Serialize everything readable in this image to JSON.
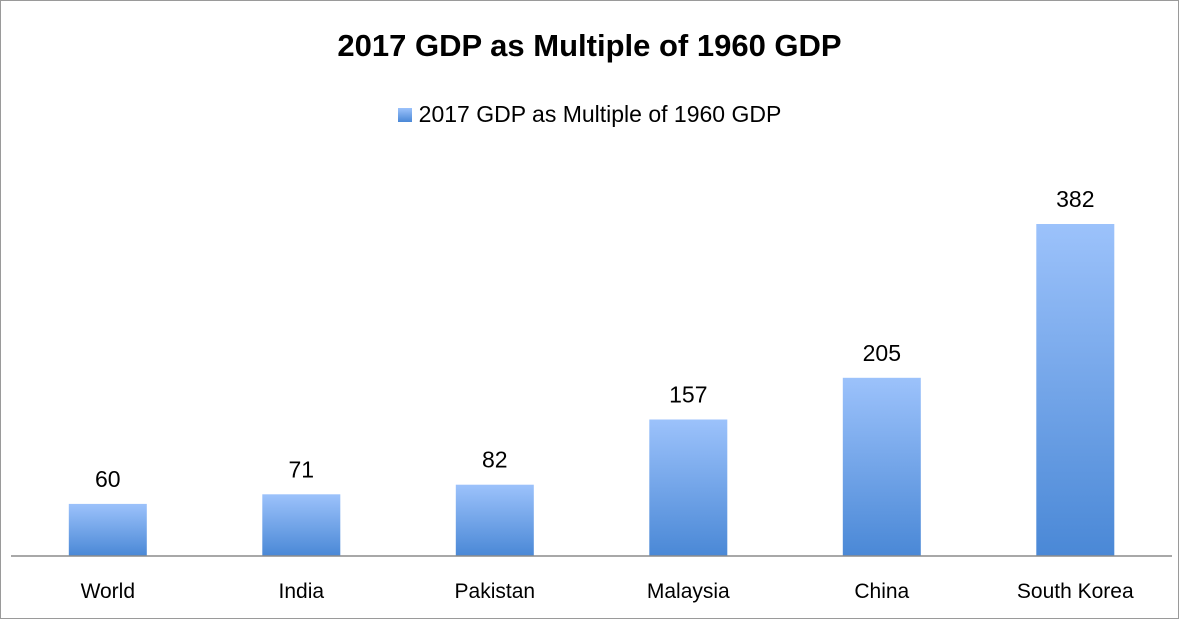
{
  "chart_data": {
    "type": "bar",
    "title": "2017 GDP as Multiple of 1960 GDP",
    "legend": [
      "2017 GDP as Multiple of 1960 GDP"
    ],
    "legend_position": "top",
    "categories": [
      "World",
      "India",
      "Pakistan",
      "Malaysia",
      "China",
      "South Korea"
    ],
    "series": [
      {
        "name": "2017 GDP as Multiple of 1960 GDP",
        "values": [
          60,
          71,
          82,
          157,
          205,
          382
        ],
        "labels": [
          "60",
          "71",
          "82",
          "157",
          "205",
          "382"
        ]
      }
    ],
    "xlabel": "",
    "ylabel": "",
    "ylim": [
      0,
      382
    ],
    "grid": false,
    "colors": {
      "bar_top": "#9cc2fb",
      "bar_bottom": "#4a88d6",
      "axis": "#8c8c8c"
    }
  }
}
